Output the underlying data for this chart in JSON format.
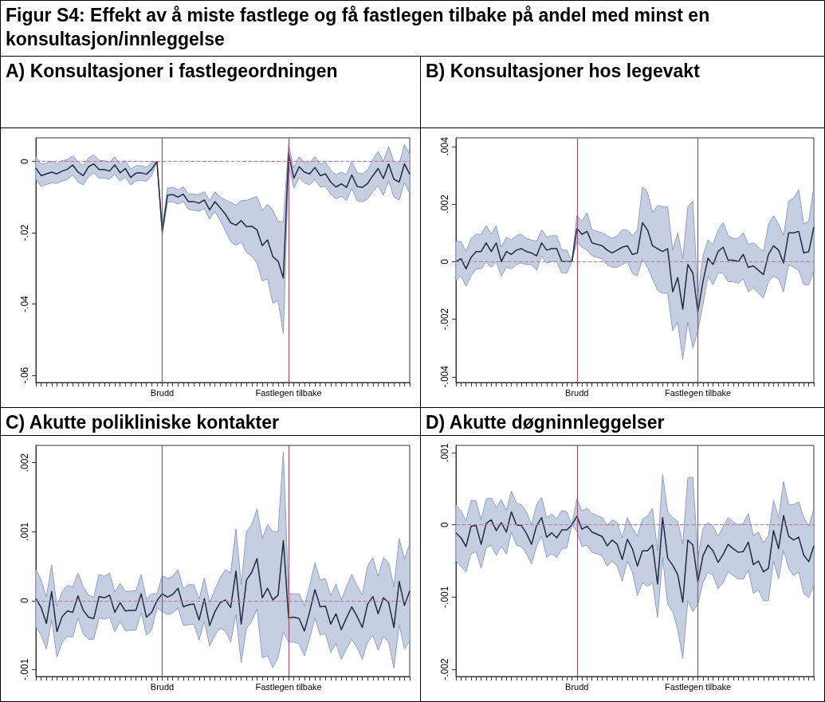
{
  "chart_data": [
    {
      "type": "line",
      "title": "Figur S4: Effekt av å miste fastlege og få fastlegen tilbake på andel med minst en konsultasjon/innleggelse",
      "subtitle": "A) Konsultasjoner i fastlegeordningen",
      "categories": [
        null,
        null,
        null,
        null,
        null,
        null,
        null,
        null,
        null,
        null,
        null,
        null,
        null,
        null,
        null,
        null,
        null,
        null,
        null,
        null,
        null,
        null,
        null,
        null,
        "Brudd",
        null,
        null,
        null,
        null,
        null,
        null,
        null,
        null,
        null,
        null,
        null,
        null,
        null,
        null,
        null,
        null,
        null,
        null,
        null,
        null,
        null,
        null,
        null,
        "Fastlegen tilbake",
        null,
        null,
        null,
        null,
        null,
        null,
        null,
        null,
        null,
        null,
        null,
        null,
        null,
        null,
        null,
        null,
        null,
        null,
        null,
        null,
        null,
        null,
        null
      ],
      "series": [
        {
          "color": "#1f2a44",
          "values": [
            -0.0019,
            -0.004,
            -0.0035,
            -0.003,
            -0.0035,
            -0.0027,
            -0.0022,
            -0.001,
            -0.003,
            -0.004,
            -0.0015,
            -0.0007,
            -0.0023,
            -0.0023,
            -0.0027,
            -0.001,
            -0.0032,
            -0.002,
            -0.0045,
            -0.0033,
            -0.0032,
            -0.0036,
            -0.0022,
            0,
            -0.0196,
            -0.0095,
            -0.0093,
            -0.01,
            -0.0092,
            -0.0113,
            -0.0113,
            -0.0117,
            -0.0108,
            -0.0136,
            -0.0113,
            -0.013,
            -0.0148,
            -0.0172,
            -0.0179,
            -0.0166,
            -0.0183,
            -0.0182,
            -0.0192,
            -0.0236,
            -0.022,
            -0.0267,
            -0.028,
            -0.0327,
            0.0022,
            -0.0047,
            -0.0015,
            -0.003,
            -0.0035,
            -0.0017,
            -0.004,
            -0.0035,
            -0.0058,
            -0.0072,
            -0.0063,
            -0.0073,
            -0.0038,
            -0.007,
            -0.0073,
            -0.0062,
            -0.004,
            -0.002,
            -0.0048,
            -0.0007,
            -0.005,
            -0.0058,
            -0.0007,
            -0.0036
          ],
          "lower": [
            -0.005,
            -0.007,
            -0.0065,
            -0.006,
            -0.0062,
            -0.0055,
            -0.005,
            -0.0038,
            -0.0058,
            -0.0066,
            -0.0042,
            -0.0033,
            -0.0047,
            -0.0047,
            -0.005,
            -0.0035,
            -0.0055,
            -0.0043,
            -0.0066,
            -0.0055,
            -0.0053,
            -0.0056,
            -0.004,
            0,
            -0.0207,
            -0.0115,
            -0.0113,
            -0.012,
            -0.0112,
            -0.0135,
            -0.0137,
            -0.014,
            -0.0132,
            -0.0162,
            -0.014,
            -0.0165,
            -0.0195,
            -0.0225,
            -0.0235,
            -0.0225,
            -0.0255,
            -0.0265,
            -0.0286,
            -0.0335,
            -0.033,
            -0.0398,
            -0.039,
            -0.0483,
            -0.001,
            -0.0075,
            -0.0045,
            -0.006,
            -0.0066,
            -0.005,
            -0.0072,
            -0.007,
            -0.0092,
            -0.0105,
            -0.0098,
            -0.011,
            -0.0075,
            -0.011,
            -0.0113,
            -0.0105,
            -0.0085,
            -0.0068,
            -0.0095,
            -0.0055,
            -0.01,
            -0.0108,
            -0.006,
            -0.009
          ],
          "upper": [
            0.0013,
            -0.0008,
            -0.0005,
            0,
            -0.0007,
            0.0002,
            0.0005,
            0.0015,
            -0.0002,
            -0.0012,
            0.001,
            0.0018,
            0.0003,
            0.0002,
            -0.0003,
            0.0013,
            -0.0008,
            0.0002,
            -0.0022,
            -0.0012,
            -0.0012,
            -0.0016,
            -0.0004,
            0,
            -0.0185,
            -0.0075,
            -0.0073,
            -0.008,
            -0.0072,
            -0.0092,
            -0.0092,
            -0.0094,
            -0.0085,
            -0.011,
            -0.0085,
            -0.01,
            -0.0108,
            -0.0115,
            -0.0123,
            -0.011,
            -0.011,
            -0.0103,
            -0.0099,
            -0.0138,
            -0.012,
            -0.0137,
            -0.0168,
            -0.017,
            0.0045,
            -0.0018,
            0.0013,
            -0.0003,
            -0.0004,
            0.0013,
            -0.0008,
            -0.0003,
            -0.0025,
            -0.0038,
            -0.003,
            -0.0037,
            0,
            -0.0032,
            -0.0035,
            -0.0025,
            0.0005,
            0.0028,
            0,
            0.0042,
            0,
            -0.0007,
            0.0047,
            0.002
          ]
        }
      ],
      "ylim": [
        -0.062,
        0.0066
      ],
      "yticks": [
        {
          "value": 0,
          "label": "0"
        },
        {
          "value": -0.02,
          "label": "-.02"
        },
        {
          "value": -0.04,
          "label": "-.04"
        },
        {
          "value": -0.06,
          "label": "-.06"
        }
      ],
      "ref_lines": [
        {
          "axis": "x",
          "value": "Brudd",
          "color": "#a0506e",
          "line_style": "solid"
        },
        {
          "axis": "x",
          "value": "Fastlegen tilbake",
          "color": "#a0506e",
          "line_style": "solid"
        },
        {
          "axis": "y",
          "value": 0,
          "color": "#b07a90",
          "line_style": "dashed"
        }
      ]
    },
    {
      "type": "line",
      "subtitle": "B) Konsultasjoner hos legevakt",
      "categories": [
        null,
        null,
        null,
        null,
        null,
        null,
        null,
        null,
        null,
        null,
        null,
        null,
        null,
        null,
        null,
        null,
        null,
        null,
        null,
        null,
        null,
        null,
        null,
        null,
        "Brudd",
        null,
        null,
        null,
        null,
        null,
        null,
        null,
        null,
        null,
        null,
        null,
        null,
        null,
        null,
        null,
        null,
        null,
        null,
        null,
        null,
        null,
        null,
        null,
        "Fastlegen tilbake",
        null,
        null,
        null,
        null,
        null,
        null,
        null,
        null,
        null,
        null,
        null,
        null,
        null,
        null,
        null,
        null,
        null,
        null,
        null,
        null,
        null,
        null,
        null
      ],
      "series": [
        {
          "color": "#1f2a44",
          "values": [
            0,
            0.0001,
            -0.00025,
            0.00015,
            0.00035,
            0.00035,
            0.00065,
            0.00035,
            0.00065,
            0,
            0.00035,
            0.00025,
            0.0004,
            0.00045,
            0.00035,
            0.0003,
            0.0002,
            0.00065,
            0.0004,
            0.00045,
            0.00045,
            0,
            0,
            0,
            0.00115,
            0.00095,
            0.00105,
            0.00065,
            0.0006,
            0.00055,
            0.0004,
            0.0003,
            0.0004,
            0.0005,
            0.00055,
            0.00025,
            0.0003,
            0.00135,
            0.0011,
            0.00055,
            0.00045,
            0.00035,
            0.00045,
            -0.00105,
            -0.00055,
            -0.00165,
            -0.0001,
            -0.0004,
            -0.00175,
            -0.0007,
            0.00012,
            -0.0001,
            0.00035,
            0.0005,
            5e-05,
            5e-05,
            0,
            0.00025,
            -0.0002,
            -0.00015,
            -0.0003,
            -0.00045,
            0.00025,
            0.00055,
            0.0004,
            -5e-05,
            0.001,
            0.001,
            0.00105,
            0.0003,
            0.00035,
            0.0012
          ],
          "lower": [
            -0.00065,
            -0.0005,
            -0.00085,
            -0.0005,
            -0.00025,
            -0.00025,
            0,
            -0.0002,
            0,
            -0.0005,
            -0.0002,
            -0.00025,
            -0.0001,
            -5e-05,
            -0.0001,
            -0.0001,
            -0.0003,
            0.0002,
            -5e-05,
            0,
            0,
            -0.0004,
            -0.0004,
            0,
            0.0007,
            0.0005,
            0.0004,
            0.0002,
            0.00015,
            0.0001,
            -0.0001,
            -0.0002,
            -0.0002,
            -0.0001,
            0,
            -0.0004,
            -0.0005,
            0.0001,
            -0.0002,
            -0.0006,
            -0.001,
            -0.0011,
            -0.0011,
            -0.0024,
            -0.0021,
            -0.0034,
            -0.0021,
            -0.003,
            -0.0024,
            -0.0015,
            -0.0005,
            -0.0008,
            -0.0004,
            -0.0004,
            -0.0007,
            -0.0007,
            -0.00075,
            -0.0006,
            -0.00105,
            -0.0009,
            -0.0011,
            -0.00125,
            -0.0007,
            -0.0005,
            -0.0006,
            -0.00105,
            -0.0001,
            -0.0002,
            -0.0003,
            -0.0008,
            -0.0008,
            -0.0003
          ],
          "upper": [
            0.0007,
            0.0007,
            0.00035,
            0.0008,
            0.00095,
            0.00095,
            0.00125,
            0.00095,
            0.00125,
            0.0005,
            0.00085,
            0.00075,
            0.0009,
            0.00095,
            0.0008,
            0.00075,
            0.0007,
            0.0011,
            0.00085,
            0.0009,
            0.0009,
            0.0004,
            0.0004,
            0,
            0.0016,
            0.0014,
            0.0017,
            0.0011,
            0.00105,
            0.001,
            0.0009,
            0.0008,
            0.0009,
            0.0011,
            0.0011,
            0.0009,
            0.0011,
            0.0026,
            0.0024,
            0.0017,
            0.00195,
            0.0019,
            0.0019,
            0.0004,
            0.001,
            0.0001,
            0.0019,
            0.0021,
            -0.0012,
            0.0002,
            0.00075,
            0.0006,
            0.0011,
            0.00135,
            0.0009,
            0.0008,
            0.0008,
            0.001,
            0.0006,
            0.00065,
            0.0005,
            0.00035,
            0.0013,
            0.0016,
            0.0013,
            0.0009,
            0.0021,
            0.0022,
            0.0025,
            0.0013,
            0.0014,
            0.0026
          ]
        }
      ],
      "ylim": [
        -0.0042,
        0.0043
      ],
      "yticks": [
        {
          "value": 0.004,
          "label": ".004"
        },
        {
          "value": 0.002,
          "label": ".002"
        },
        {
          "value": 0,
          "label": "0"
        },
        {
          "value": -0.002,
          "label": "-.002"
        },
        {
          "value": -0.004,
          "label": "-.004"
        }
      ],
      "ref_lines": [
        {
          "axis": "x",
          "value": "Brudd",
          "color": "#a0506e",
          "line_style": "solid"
        },
        {
          "axis": "x",
          "value": "Fastlegen tilbake",
          "color": "#a0506e",
          "line_style": "solid"
        },
        {
          "axis": "y",
          "value": 0,
          "color": "#b07a90",
          "line_style": "dashed"
        }
      ]
    },
    {
      "type": "line",
      "subtitle": "C) Akutte polikliniske kontakter",
      "categories": [
        null,
        null,
        null,
        null,
        null,
        null,
        null,
        null,
        null,
        null,
        null,
        null,
        null,
        null,
        null,
        null,
        null,
        null,
        null,
        null,
        null,
        null,
        null,
        null,
        "Brudd",
        null,
        null,
        null,
        null,
        null,
        null,
        null,
        null,
        null,
        null,
        null,
        null,
        null,
        null,
        null,
        null,
        null,
        null,
        null,
        null,
        null,
        null,
        null,
        "Fastlegen tilbake",
        null,
        null,
        null,
        null,
        null,
        null,
        null,
        null,
        null,
        null,
        null,
        null,
        null,
        null,
        null,
        null,
        null,
        null,
        null,
        null,
        null,
        null,
        null
      ],
      "series": [
        {
          "color": "#1f2a44",
          "values": [
            3e-05,
            -0.0001,
            -0.00033,
            0.00013,
            -0.00045,
            -0.00023,
            -0.00015,
            -0.00017,
            7e-05,
            -0.00014,
            -0.00024,
            -0.00026,
            6e-05,
            4e-05,
            8e-05,
            -0.00017,
            -3e-05,
            -0.00015,
            -0.00014,
            -0.00014,
            0.0001,
            -0.00024,
            -0.00017,
            0,
            0.0001,
            5e-05,
            9e-05,
            0.00018,
            -9e-05,
            -6e-05,
            -5e-05,
            -0.00028,
            3e-05,
            -0.00036,
            -0.00016,
            -3e-05,
            1e-05,
            -0.0001,
            0.00043,
            -0.00034,
            0.0003,
            0.00041,
            0.00061,
            4e-05,
            0.00018,
            1e-05,
            8e-05,
            0.00087,
            -0.00025,
            -0.00024,
            -0.00026,
            -0.00044,
            -0.00016,
            0.00016,
            -9e-05,
            -8e-05,
            -0.00034,
            -0.00019,
            -0.00042,
            -0.00025,
            -9e-05,
            -0.00023,
            -0.00039,
            -5e-05,
            6e-05,
            -0.00019,
            4e-05,
            -3e-05,
            -0.00039,
            0.00028,
            -7e-05,
            0.00014
          ],
          "lower": [
            -0.00038,
            -0.0005,
            -0.0007,
            -0.00028,
            -0.00082,
            -0.0006,
            -0.00052,
            -0.00053,
            -0.00025,
            -0.00048,
            -0.00056,
            -0.00056,
            -0.00025,
            -0.00027,
            -0.00024,
            -0.00045,
            -0.0003,
            -0.00044,
            -0.00043,
            -0.00043,
            -0.00017,
            -0.0005,
            -0.00043,
            -0.0001,
            -0.00016,
            -0.0002,
            -0.00018,
            -0.0001,
            -0.00036,
            -0.00035,
            -0.00034,
            -0.00057,
            -0.0003,
            -0.00066,
            -0.0005,
            -0.0004,
            -0.00044,
            -0.0006,
            -0.0002,
            -0.0009,
            -0.0004,
            -0.0003,
            -0.00012,
            -0.00083,
            -0.0008,
            -0.00097,
            -0.00083,
            -0.00045,
            -0.0006,
            -0.0006,
            -0.00063,
            -0.0008,
            -0.00055,
            -0.00025,
            -0.0005,
            -0.00048,
            -0.00075,
            -0.00062,
            -0.00085,
            -0.0007,
            -0.00056,
            -0.00068,
            -0.00085,
            -0.0006,
            -0.0005,
            -0.00072,
            -0.00052,
            -0.0006,
            -0.00098,
            -0.00035,
            -0.0007,
            -0.00058
          ],
          "upper": [
            0.00045,
            0.0003,
            5e-05,
            0.00052,
            -8e-05,
            0.00013,
            0.00022,
            0.0002,
            0.0004,
            0.0002,
            8e-05,
            5e-05,
            0.00038,
            0.00035,
            0.0004,
            0.00012,
            0.00025,
            0.00013,
            0.00014,
            0.00014,
            0.00038,
            2e-05,
            0.0001,
            0.0001,
            0.00036,
            0.00032,
            0.00035,
            0.00045,
            0.00017,
            0.00023,
            0.00023,
            2e-05,
            0.00033,
            -3e-05,
            0.00016,
            0.00033,
            0.00045,
            0.0004,
            0.00104,
            0.00023,
            0.001,
            0.0011,
            0.00133,
            0.0009,
            0.0011,
            0.001,
            0.001,
            0.00215,
            0.0001,
            0.0001,
            0.0001,
            -8e-05,
            0.00022,
            0.00055,
            0.0003,
            0.00032,
            7e-05,
            0.00024,
            1e-05,
            0.0002,
            0.00038,
            0.00022,
            8e-05,
            0.0005,
            0.00062,
            0.00035,
            0.00062,
            0.00055,
            0.0002,
            0.0009,
            0.0006,
            0.00083
          ]
        }
      ],
      "ylim": [
        -0.0011,
        0.00225
      ],
      "yticks": [
        {
          "value": 0.002,
          "label": ".002"
        },
        {
          "value": 0.001,
          "label": ".001"
        },
        {
          "value": 0,
          "label": "0"
        },
        {
          "value": -0.001,
          "label": "-.001"
        }
      ],
      "ref_lines": [
        {
          "axis": "x",
          "value": "Brudd",
          "color": "#a0506e",
          "line_style": "solid"
        },
        {
          "axis": "x",
          "value": "Fastlegen tilbake",
          "color": "#a0506e",
          "line_style": "solid"
        },
        {
          "axis": "y",
          "value": 0,
          "color": "#b07a90",
          "line_style": "dashed"
        }
      ]
    },
    {
      "type": "line",
      "subtitle": "D) Akutte døgninnleggelser",
      "categories": [
        null,
        null,
        null,
        null,
        null,
        null,
        null,
        null,
        null,
        null,
        null,
        null,
        null,
        null,
        null,
        null,
        null,
        null,
        null,
        null,
        null,
        null,
        null,
        null,
        "Brudd",
        null,
        null,
        null,
        null,
        null,
        null,
        null,
        null,
        null,
        null,
        null,
        null,
        null,
        null,
        null,
        null,
        null,
        null,
        null,
        null,
        null,
        null,
        null,
        "Fastlegen tilbake",
        null,
        null,
        null,
        null,
        null,
        null,
        null,
        null,
        null,
        null,
        null,
        null,
        null,
        null,
        null,
        null,
        null,
        null,
        null,
        null,
        null,
        null,
        null
      ],
      "series": [
        {
          "color": "#1f2a44",
          "values": [
            -0.00011,
            -0.00018,
            -0.0003,
            -2e-05,
            -1e-05,
            -0.00027,
            2e-05,
            7e-05,
            -8e-05,
            3e-05,
            -0.0001,
            0.00018,
            0,
            -1e-05,
            -0.00012,
            -0.00027,
            -1e-05,
            0.0001,
            -0.00017,
            -0.00011,
            -0.00018,
            -7e-05,
            -7e-05,
            0,
            0.00012,
            -6e-05,
            -2e-05,
            -0.0001,
            -0.00013,
            -0.00016,
            -0.00029,
            -0.00021,
            -0.00027,
            -0.00048,
            -0.0002,
            -0.00033,
            -0.00057,
            -0.00036,
            -0.00036,
            -0.00028,
            -0.00082,
            0.0001,
            -0.00046,
            -0.00056,
            -0.00069,
            -0.00107,
            -0.00021,
            -0.00028,
            -0.00079,
            -0.00043,
            -0.00028,
            -0.00036,
            -0.00052,
            -0.00041,
            -0.00027,
            -0.00033,
            -0.00038,
            -0.00037,
            -0.00024,
            -0.00055,
            -0.0005,
            -0.00065,
            -0.0006,
            -8e-05,
            -0.00033,
            0.00013,
            -0.00016,
            -0.00021,
            -0.00017,
            -0.00042,
            -0.00051,
            -0.00029
          ],
          "lower": [
            -0.0005,
            -0.00057,
            -0.00065,
            -0.0004,
            -0.00037,
            -0.0006,
            -0.00032,
            -0.00028,
            -0.00042,
            -0.0003,
            -0.0004,
            -0.0001,
            -0.00028,
            -0.0003,
            -0.0004,
            -0.00054,
            -0.0003,
            -0.00015,
            -0.00045,
            -0.0004,
            -0.00045,
            -0.00033,
            -0.00032,
            0,
            -9e-05,
            -0.0003,
            -0.00028,
            -0.00038,
            -0.0004,
            -0.00043,
            -0.00057,
            -0.0005,
            -0.00057,
            -0.00078,
            -0.0005,
            -0.00065,
            -0.00098,
            -0.0008,
            -0.00085,
            -0.0008,
            -0.00128,
            -0.00045,
            -0.0011,
            -0.0012,
            -0.00145,
            -0.00185,
            -0.00105,
            -0.0012,
            -0.0011,
            -0.0008,
            -0.00065,
            -0.0007,
            -0.00088,
            -0.0008,
            -0.00065,
            -0.0007,
            -0.00075,
            -0.00075,
            -0.00062,
            -0.00095,
            -0.0009,
            -0.00105,
            -0.00105,
            -0.0005,
            -0.00075,
            -0.00035,
            -0.0006,
            -0.0007,
            -0.00065,
            -0.00095,
            -0.001,
            -0.00083
          ],
          "upper": [
            0.00027,
            0.0002,
            5e-05,
            0.00034,
            0.00033,
            7e-05,
            0.00036,
            0.00037,
            0.00024,
            0.00035,
            0.0002,
            0.00047,
            0.0003,
            0.00028,
            0.00018,
            0,
            0.00028,
            0.00038,
            0.0001,
            0.00015,
            8e-05,
            0.0002,
            0.00018,
            0,
            0.00036,
            0.00019,
            0.00023,
            0.00016,
            0.00013,
            0.0001,
            -1e-05,
            7e-05,
            3e-05,
            -0.00018,
            0.0001,
            -4e-05,
            -0.00016,
            8e-05,
            0.00012,
            0.00023,
            -0.00036,
            0.0007,
            0.00018,
            0.0001,
            5e-05,
            -0.00027,
            0.00065,
            0.00066,
            -0.00045,
            -5e-05,
            3e-05,
            -2e-05,
            -0.00016,
            -3e-05,
            0.0001,
            4e-05,
            0,
            2e-05,
            0.00016,
            -0.00015,
            -0.0001,
            -0.00025,
            -0.00015,
            0.00034,
            0.0001,
            0.0006,
            0.00028,
            0.00028,
            0.00032,
            0.0001,
            -2e-05,
            0.00022
          ]
        }
      ],
      "ylim": [
        -0.0021,
        0.0011
      ],
      "yticks": [
        {
          "value": 0.001,
          "label": ".001"
        },
        {
          "value": 0,
          "label": "0"
        },
        {
          "value": -0.001,
          "label": "-.001"
        },
        {
          "value": -0.002,
          "label": "-.002"
        }
      ],
      "ref_lines": [
        {
          "axis": "x",
          "value": "Brudd",
          "color": "#a0506e",
          "line_style": "solid"
        },
        {
          "axis": "x",
          "value": "Fastlegen tilbake",
          "color": "#a0506e",
          "line_style": "solid"
        },
        {
          "axis": "y",
          "value": 0,
          "color": "#b07a90",
          "line_style": "dashed"
        }
      ]
    }
  ]
}
